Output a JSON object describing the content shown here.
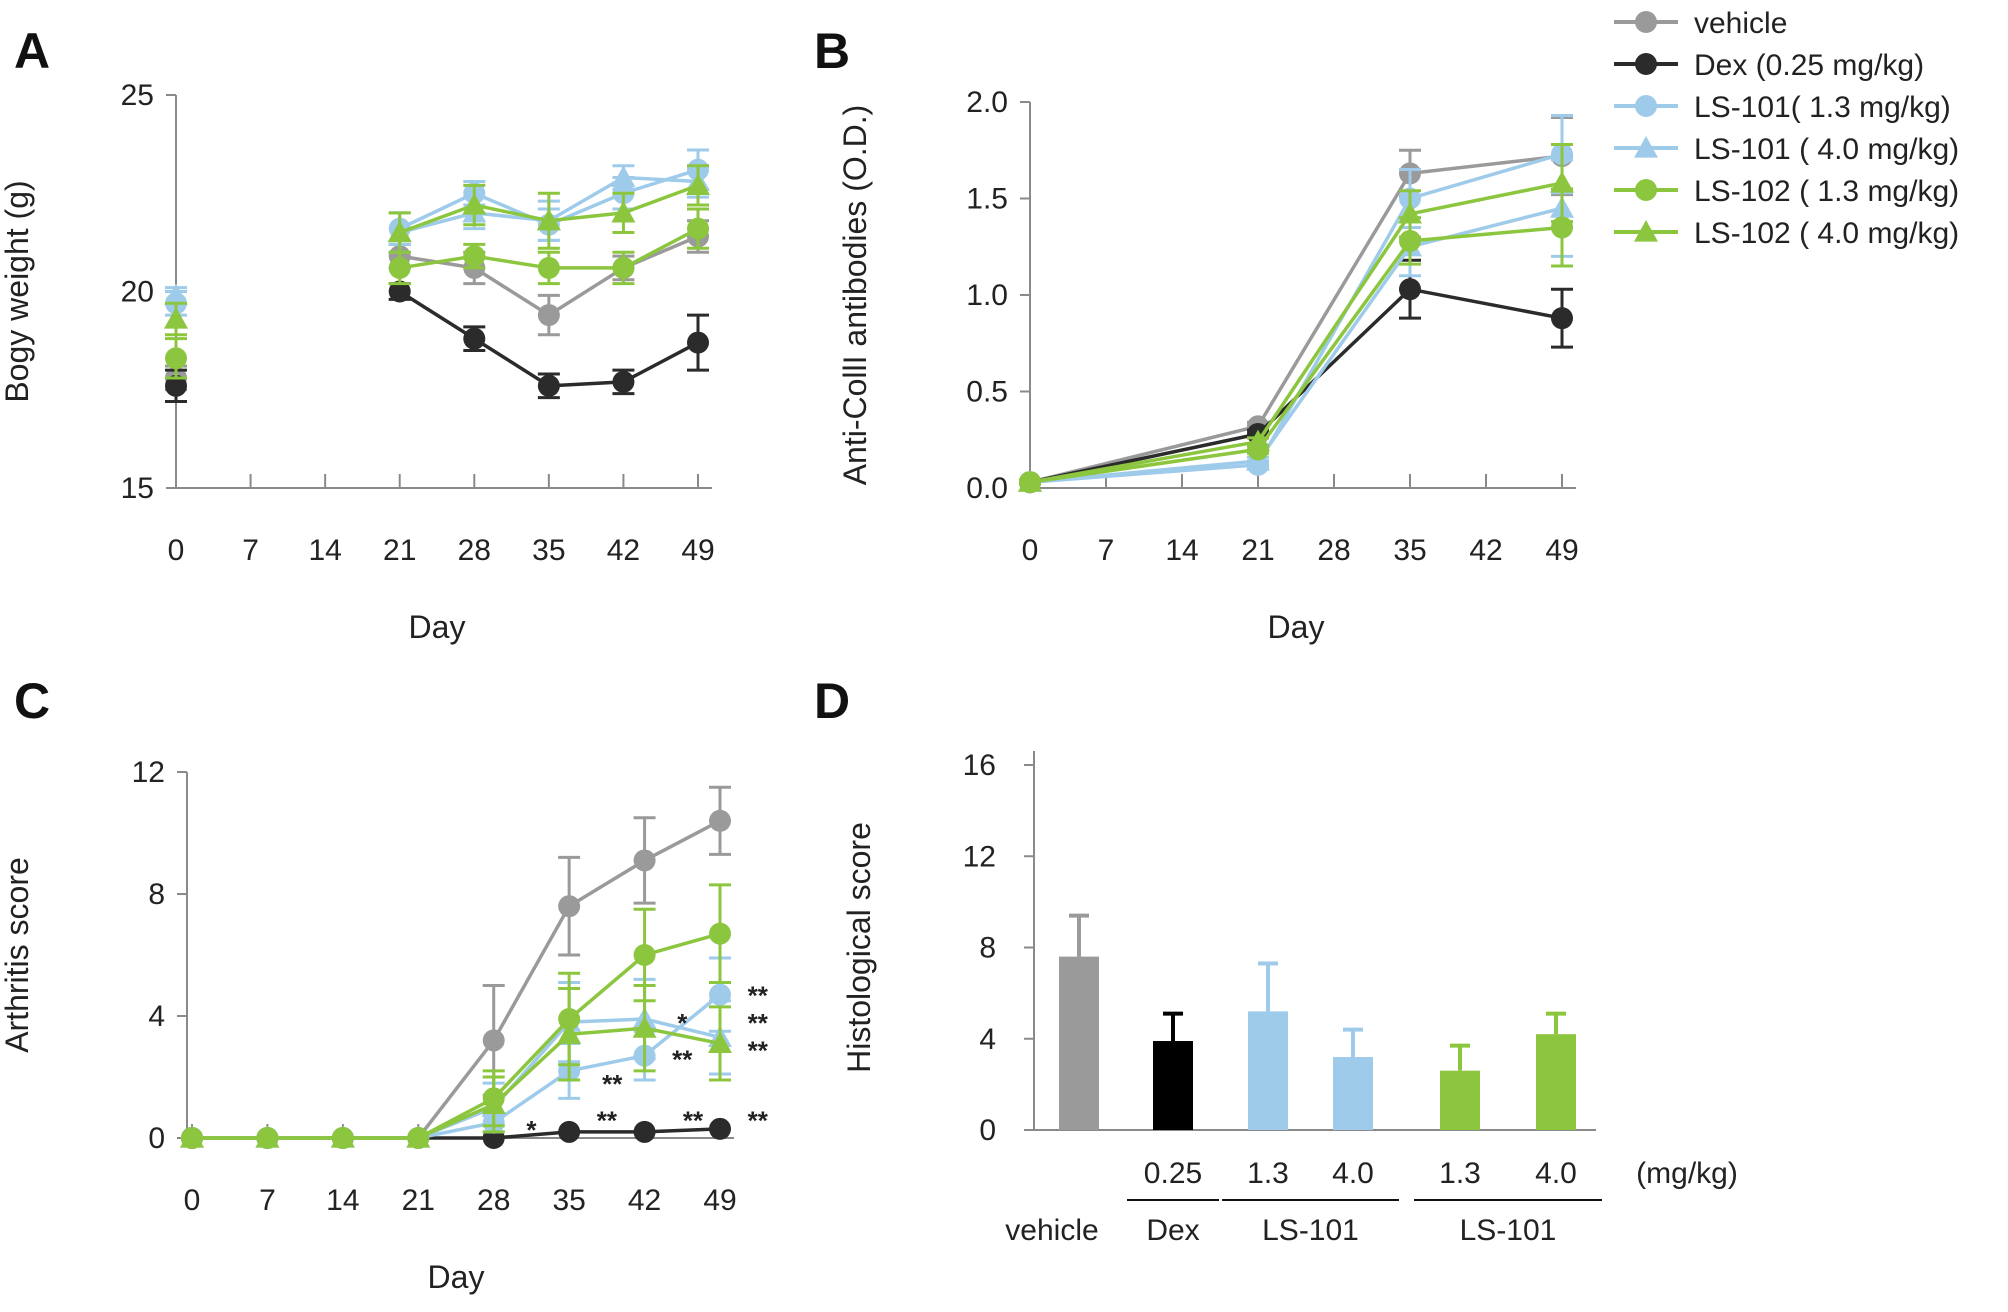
{
  "colors": {
    "vehicle": "#9a9a9a",
    "dex": "#2b2b2b",
    "ls101": "#9fcbeb",
    "ls102": "#8cc63f",
    "axis": "#8a8a8a"
  },
  "legend": [
    {
      "label": "vehicle",
      "color": "#9a9a9a",
      "marker": "circle"
    },
    {
      "label": "Dex (0.25 mg/kg)",
      "color": "#2b2b2b",
      "marker": "circle"
    },
    {
      "label": "LS-101( 1.3 mg/kg)",
      "color": "#9fcbeb",
      "marker": "circle"
    },
    {
      "label": "LS-101 ( 4.0 mg/kg)",
      "color": "#9fcbeb",
      "marker": "triangle"
    },
    {
      "label": "LS-102 ( 1.3 mg/kg)",
      "color": "#8cc63f",
      "marker": "circle"
    },
    {
      "label": "LS-102 ( 4.0 mg/kg)",
      "color": "#8cc63f",
      "marker": "triangle"
    }
  ],
  "chart_data": [
    {
      "panel": "A",
      "type": "line",
      "xlabel": "Day",
      "ylabel": "Bogy weight (g)",
      "x_ticks": [
        0,
        7,
        14,
        21,
        28,
        35,
        42,
        49
      ],
      "y_ticks": [
        15,
        20,
        25
      ],
      "ylim": [
        15,
        25
      ],
      "xlim": [
        0,
        49
      ],
      "series": [
        {
          "name": "vehicle",
          "color": "#9a9a9a",
          "marker": "circle",
          "x": [
            0,
            21,
            28,
            35,
            42,
            49
          ],
          "y": [
            17.8,
            20.9,
            20.6,
            19.4,
            20.6,
            21.4
          ],
          "err": [
            0.3,
            0.3,
            0.4,
            0.5,
            0.3,
            0.4
          ],
          "connect_from": 1
        },
        {
          "name": "Dex (0.25 mg/kg)",
          "color": "#2b2b2b",
          "marker": "circle",
          "x": [
            0,
            21,
            28,
            35,
            42,
            49
          ],
          "y": [
            17.6,
            20.0,
            18.8,
            17.6,
            17.7,
            18.7
          ],
          "err": [
            0.4,
            0.2,
            0.3,
            0.3,
            0.3,
            0.7
          ],
          "connect_from": 1
        },
        {
          "name": "LS-101( 1.3 mg/kg)",
          "color": "#9fcbeb",
          "marker": "circle",
          "x": [
            0,
            21,
            28,
            35,
            42,
            49
          ],
          "y": [
            19.7,
            21.6,
            22.5,
            21.7,
            22.5,
            23.1
          ],
          "err": [
            0.3,
            0.4,
            0.3,
            0.4,
            0.4,
            0.5
          ],
          "connect_from": 1
        },
        {
          "name": "LS-101 ( 4.0 mg/kg)",
          "color": "#9fcbeb",
          "marker": "triangle",
          "x": [
            0,
            21,
            28,
            35,
            42,
            49
          ],
          "y": [
            19.9,
            21.5,
            22.0,
            21.8,
            22.9,
            22.8
          ],
          "err": [
            0.2,
            0.5,
            0.4,
            0.5,
            0.3,
            0.4
          ],
          "connect_from": 1
        },
        {
          "name": "LS-102 ( 1.3 mg/kg)",
          "color": "#8cc63f",
          "marker": "circle",
          "x": [
            0,
            21,
            28,
            35,
            42,
            49
          ],
          "y": [
            18.3,
            20.6,
            20.9,
            20.6,
            20.6,
            21.6
          ],
          "err": [
            0.5,
            0.4,
            0.3,
            0.4,
            0.4,
            0.5
          ],
          "connect_from": 1
        },
        {
          "name": "LS-102 ( 4.0 mg/kg)",
          "color": "#8cc63f",
          "marker": "triangle",
          "x": [
            0,
            21,
            28,
            35,
            42,
            49
          ],
          "y": [
            19.3,
            21.5,
            22.2,
            21.8,
            22.0,
            22.7
          ],
          "err": [
            0.4,
            0.5,
            0.5,
            0.7,
            0.5,
            0.5
          ],
          "connect_from": 1
        }
      ]
    },
    {
      "panel": "B",
      "type": "line",
      "xlabel": "Day",
      "ylabel": "Anti-CollI antibodies (O.D.)",
      "x_ticks": [
        0,
        7,
        14,
        21,
        28,
        35,
        42,
        49
      ],
      "y_ticks": [
        "0.0",
        "0.5",
        "1.0",
        "1.5",
        "2.0"
      ],
      "ylim": [
        0,
        2.0
      ],
      "xlim": [
        0,
        49
      ],
      "series": [
        {
          "name": "vehicle",
          "color": "#9a9a9a",
          "marker": "circle",
          "x": [
            0,
            21,
            35,
            49
          ],
          "y": [
            0.03,
            0.32,
            1.63,
            1.72
          ],
          "err": [
            0.01,
            0.02,
            0.12,
            0.2
          ],
          "connect_from": 0
        },
        {
          "name": "Dex (0.25 mg/kg)",
          "color": "#2b2b2b",
          "marker": "circle",
          "x": [
            0,
            21,
            35,
            49
          ],
          "y": [
            0.03,
            0.28,
            1.03,
            0.88
          ],
          "err": [
            0.01,
            0.02,
            0.15,
            0.15
          ],
          "connect_from": 0
        },
        {
          "name": "LS-101( 1.3 mg/kg)",
          "color": "#9fcbeb",
          "marker": "circle",
          "x": [
            0,
            21,
            35,
            49
          ],
          "y": [
            0.03,
            0.12,
            1.5,
            1.73
          ],
          "err": [
            0.01,
            0.02,
            0.15,
            0.2
          ],
          "connect_from": 0
        },
        {
          "name": "LS-101 ( 4.0 mg/kg)",
          "color": "#9fcbeb",
          "marker": "triangle",
          "x": [
            0,
            21,
            35,
            49
          ],
          "y": [
            0.03,
            0.14,
            1.25,
            1.45
          ],
          "err": [
            0.01,
            0.02,
            0.15,
            0.25
          ],
          "connect_from": 0
        },
        {
          "name": "LS-102 ( 1.3 mg/kg)",
          "color": "#8cc63f",
          "marker": "circle",
          "x": [
            0,
            21,
            35,
            49
          ],
          "y": [
            0.03,
            0.2,
            1.28,
            1.35
          ],
          "err": [
            0.01,
            0.02,
            0.12,
            0.2
          ],
          "connect_from": 0
        },
        {
          "name": "LS-102 ( 4.0 mg/kg)",
          "color": "#8cc63f",
          "marker": "triangle",
          "x": [
            0,
            21,
            35,
            49
          ],
          "y": [
            0.03,
            0.24,
            1.42,
            1.58
          ],
          "err": [
            0.01,
            0.02,
            0.12,
            0.2
          ],
          "connect_from": 0
        }
      ]
    },
    {
      "panel": "C",
      "type": "line",
      "xlabel": "Day",
      "ylabel": "Arthritis score",
      "x_ticks": [
        0,
        7,
        14,
        21,
        28,
        35,
        42,
        49
      ],
      "y_ticks": [
        0,
        4,
        8,
        12
      ],
      "ylim": [
        0,
        12
      ],
      "xlim": [
        0,
        49
      ],
      "series": [
        {
          "name": "vehicle",
          "color": "#9a9a9a",
          "marker": "circle",
          "x": [
            0,
            7,
            14,
            21,
            28,
            35,
            42,
            49
          ],
          "y": [
            0,
            0,
            0,
            0,
            3.2,
            7.6,
            9.1,
            10.4
          ],
          "err": [
            0,
            0,
            0,
            0,
            1.8,
            1.6,
            1.4,
            1.1
          ],
          "connect_from": 0
        },
        {
          "name": "Dex (0.25 mg/kg)",
          "color": "#2b2b2b",
          "marker": "circle",
          "x": [
            0,
            7,
            14,
            21,
            28,
            35,
            42,
            49
          ],
          "y": [
            0,
            0,
            0,
            0,
            0,
            0.2,
            0.2,
            0.3
          ],
          "err": [
            0,
            0,
            0,
            0,
            0,
            0,
            0,
            0
          ],
          "connect_from": 0
        },
        {
          "name": "LS-101( 1.3 mg/kg)",
          "color": "#9fcbeb",
          "marker": "circle",
          "x": [
            0,
            7,
            14,
            21,
            28,
            35,
            42,
            49
          ],
          "y": [
            0,
            0,
            0,
            0,
            0.5,
            2.2,
            2.7,
            4.7
          ],
          "err": [
            0,
            0,
            0,
            0,
            0.3,
            0.9,
            0.8,
            1.2
          ],
          "connect_from": 0
        },
        {
          "name": "LS-101 ( 4.0 mg/kg)",
          "color": "#9fcbeb",
          "marker": "triangle",
          "x": [
            0,
            7,
            14,
            21,
            28,
            35,
            42,
            49
          ],
          "y": [
            0,
            0,
            0,
            0,
            1.0,
            3.8,
            3.9,
            3.3
          ],
          "err": [
            0,
            0,
            0,
            0,
            0.8,
            1.3,
            1.3,
            1.2
          ],
          "connect_from": 0
        },
        {
          "name": "LS-102 ( 1.3 mg/kg)",
          "color": "#8cc63f",
          "marker": "circle",
          "x": [
            0,
            7,
            14,
            21,
            28,
            35,
            42,
            49
          ],
          "y": [
            0,
            0,
            0,
            0,
            1.3,
            3.9,
            6.0,
            6.7
          ],
          "err": [
            0,
            0,
            0,
            0,
            0.9,
            1.5,
            1.5,
            1.6
          ],
          "connect_from": 0
        },
        {
          "name": "LS-102 ( 4.0 mg/kg)",
          "color": "#8cc63f",
          "marker": "triangle",
          "x": [
            0,
            7,
            14,
            21,
            28,
            35,
            42,
            49
          ],
          "y": [
            0,
            0,
            0,
            0,
            1.1,
            3.4,
            3.6,
            3.1
          ],
          "err": [
            0,
            0,
            0,
            0,
            0.9,
            1.5,
            1.4,
            1.2
          ],
          "connect_from": 0
        }
      ],
      "annotations": [
        {
          "text": "*",
          "x": 31.5,
          "y": 0.3
        },
        {
          "text": "**",
          "x": 38.5,
          "y": 0.6
        },
        {
          "text": "**",
          "x": 46.5,
          "y": 0.6
        },
        {
          "text": "**",
          "x": 52.5,
          "y": 0.6
        },
        {
          "text": "**",
          "x": 39,
          "y": 1.8
        },
        {
          "text": "*",
          "x": 45.5,
          "y": 3.8
        },
        {
          "text": "**",
          "x": 45.5,
          "y": 2.6
        },
        {
          "text": "**",
          "x": 52.5,
          "y": 4.7
        },
        {
          "text": "**",
          "x": 52.5,
          "y": 3.8
        },
        {
          "text": "**",
          "x": 52.5,
          "y": 2.9
        }
      ]
    },
    {
      "panel": "D",
      "type": "bar",
      "ylabel": "Histological score",
      "y_ticks": [
        0,
        4,
        8,
        12,
        16
      ],
      "ylim": [
        0,
        16
      ],
      "categories": [
        "vehicle",
        "0.25",
        "1.3",
        "4.0",
        "1.3",
        "4.0"
      ],
      "values": [
        7.6,
        3.9,
        5.2,
        3.2,
        2.6,
        4.2
      ],
      "err": [
        1.8,
        1.2,
        2.1,
        1.2,
        1.1,
        0.9
      ],
      "colors": [
        "#9a9a9a",
        "#000000",
        "#9fcbeb",
        "#9fcbeb",
        "#8cc63f",
        "#8cc63f"
      ],
      "unit_label": "(mg/kg)",
      "vehicle_label": "vehicle",
      "groups": [
        {
          "label": "Dex",
          "bars": [
            1
          ]
        },
        {
          "label": "LS-101",
          "bars": [
            2,
            3
          ]
        },
        {
          "label": "LS-101",
          "bars": [
            4,
            5
          ]
        }
      ]
    }
  ]
}
